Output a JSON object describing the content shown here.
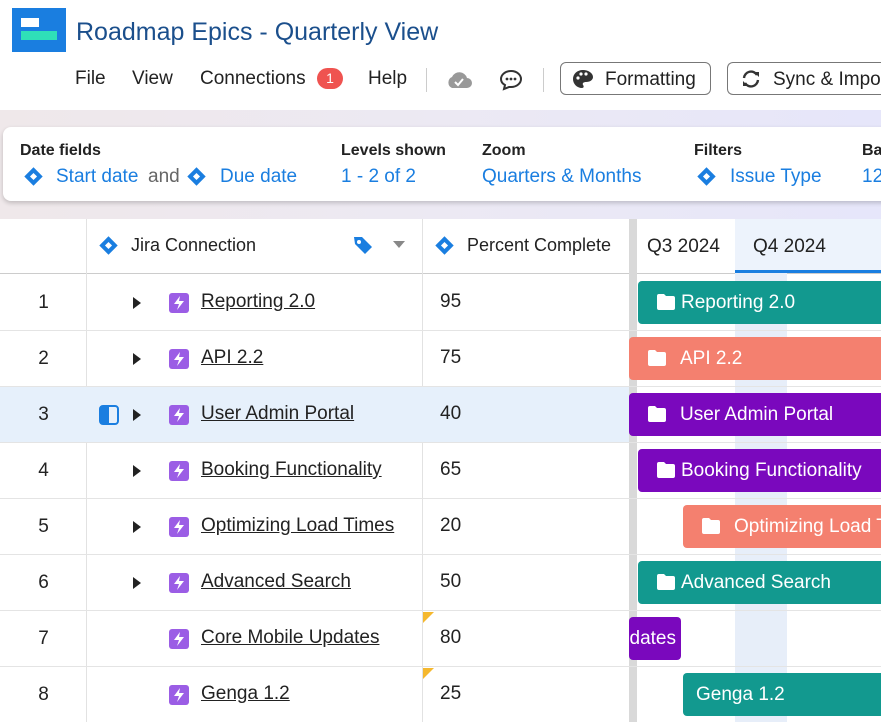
{
  "header": {
    "title": "Roadmap Epics - Quarterly View",
    "menu": [
      "File",
      "View",
      "Connections",
      "Help"
    ],
    "connections_badge": "1",
    "buttons": [
      "Formatting",
      "Sync & Impor"
    ]
  },
  "settings": {
    "date_fields": {
      "label": "Date fields",
      "start": "Start date",
      "joiner": "and",
      "end": "Due date"
    },
    "levels": {
      "label": "Levels shown",
      "value": "1 - 2 of 2"
    },
    "zoom": {
      "label": "Zoom",
      "value": "Quarters & Months"
    },
    "filters": {
      "label": "Filters",
      "value": "Issue Type"
    },
    "bars": {
      "label": "Ba",
      "value": "12"
    }
  },
  "grid": {
    "columns": [
      "Jira Connection",
      "Percent Complete"
    ],
    "timeline": [
      "Q3 2024",
      "Q4 2024"
    ],
    "rows": [
      {
        "number": 1,
        "name": "Reporting 2.0",
        "percent": 95,
        "bar_color": "#12998f"
      },
      {
        "number": 2,
        "name": "API 2.2",
        "percent": 75,
        "bar_color": "#f4806f"
      },
      {
        "number": 3,
        "name": "User Admin Portal",
        "percent": 40,
        "bar_color": "#7a08bd"
      },
      {
        "number": 4,
        "name": "Booking Functionality",
        "percent": 65,
        "bar_color": "#7a08bd"
      },
      {
        "number": 5,
        "name": "Optimizing Load Times",
        "percent": 20,
        "bar_color": "#f4806f"
      },
      {
        "number": 6,
        "name": "Advanced Search",
        "percent": 50,
        "bar_color": "#12998f"
      },
      {
        "number": 7,
        "name": "Core Mobile Updates",
        "percent": 80,
        "bar_color": "#7a08bd"
      },
      {
        "number": 8,
        "name": "Genga 1.2",
        "percent": 25,
        "bar_color": "#12998f"
      }
    ]
  }
}
